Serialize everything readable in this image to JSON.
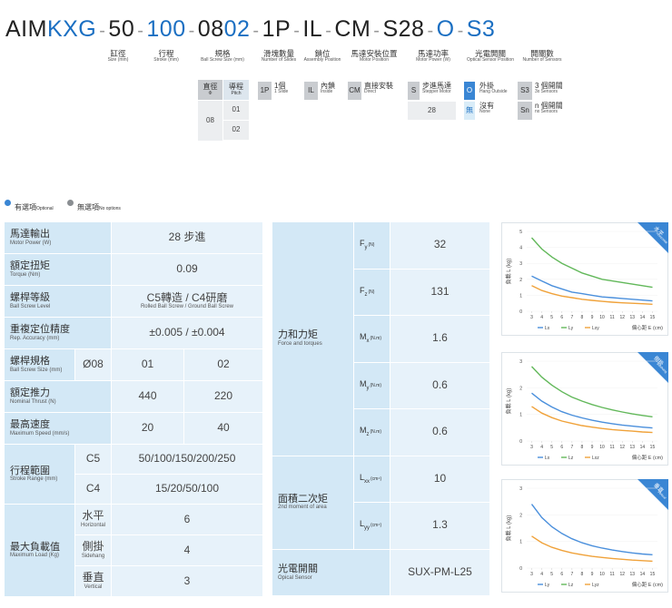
{
  "part_number": {
    "segments": [
      {
        "text": "AIM",
        "color": "#222222"
      },
      {
        "text": "KXG",
        "color": "#1b6fc2"
      },
      {
        "text": "-",
        "color": "#999999"
      },
      {
        "text": "50",
        "color": "#222222"
      },
      {
        "text": "-",
        "color": "#999999"
      },
      {
        "text": "100",
        "color": "#1b6fc2"
      },
      {
        "text": "-",
        "color": "#999999"
      },
      {
        "text": "08",
        "color": "#222222"
      },
      {
        "text": "02",
        "color": "#1b6fc2"
      },
      {
        "text": "-",
        "color": "#999999"
      },
      {
        "text": "1P",
        "color": "#222222"
      },
      {
        "text": "-",
        "color": "#999999"
      },
      {
        "text": "IL",
        "color": "#222222"
      },
      {
        "text": "-",
        "color": "#999999"
      },
      {
        "text": "CM",
        "color": "#222222"
      },
      {
        "text": "-",
        "color": "#999999"
      },
      {
        "text": "S28",
        "color": "#222222"
      },
      {
        "text": "-",
        "color": "#999999"
      },
      {
        "text": "O",
        "color": "#1b6fc2"
      },
      {
        "text": "-",
        "color": "#999999"
      },
      {
        "text": "S3",
        "color": "#1b6fc2"
      }
    ]
  },
  "fields": [
    {
      "zh": "缸徑",
      "en": "Size (mm)"
    },
    {
      "zh": "行程",
      "en": "Stroke (mm)"
    },
    {
      "zh": "規格",
      "en": "Ball Screw Size (mm)"
    },
    {
      "zh": "滑塊數量",
      "en": "Number of Slides"
    },
    {
      "zh": "鎖位",
      "en": "Assembly Position"
    },
    {
      "zh": "馬達安裝位置",
      "en": "Motor Position"
    },
    {
      "zh": "馬達功率",
      "en": "Motor Power (W)"
    },
    {
      "zh": "光電開關",
      "en": "Optical Sensor Position"
    },
    {
      "zh": "開關數",
      "en": "Number of Sensors"
    }
  ],
  "options": {
    "ball_screw": {
      "diameter_header": "直徑",
      "diameter_symbol": "Φ",
      "pitch_header": "導程",
      "pitch_en": "Pitch",
      "diameter": "08",
      "pitches": [
        "01",
        "02"
      ]
    },
    "slides": {
      "code": "1P",
      "zh": "1個",
      "en": "1 Slide"
    },
    "lock": {
      "code": "IL",
      "zh": "內鎖",
      "en": "Inside"
    },
    "motor_position": {
      "code": "CM",
      "zh": "直接安裝",
      "en": "Direct"
    },
    "motor": {
      "code": "S",
      "zh": "步進馬達",
      "en": "Stepper Motor",
      "power": "28"
    },
    "sensor": [
      {
        "code": "O",
        "zh": "外掛",
        "en": "Hang Outside"
      },
      {
        "code": "無",
        "zh": "沒有",
        "en": "None"
      }
    ],
    "sensor_count": [
      {
        "code": "S3",
        "zh": "3 個開關",
        "en": "3x Sensors"
      },
      {
        "code": "Sn",
        "zh": "n 個開關",
        "en": "nx Sensors"
      }
    ]
  },
  "legend": {
    "optional": {
      "zh": "有選項",
      "en": "Optional"
    },
    "none": {
      "zh": "無選項",
      "en": "No options"
    }
  },
  "spec_table": [
    {
      "zh": "馬達輸出",
      "en": "Motor Power (W)",
      "value": "28 步進"
    },
    {
      "zh": "額定扭矩",
      "en": "Torque (Nm)",
      "value": "0.09"
    },
    {
      "zh": "螺桿等級",
      "en": "Ball Screw Level",
      "value": "C5轉造 / C4研磨",
      "value_en": "Rolled Ball Screw / Ground Ball Screw"
    },
    {
      "zh": "重複定位精度",
      "en": "Rep. Accuracy (mm)",
      "value": "±0.005 / ±0.004"
    },
    {
      "zh": "螺桿規格",
      "en": "Ball Screw Size (mm)",
      "sub": "Ø08",
      "values": [
        "01",
        "02"
      ]
    },
    {
      "zh": "額定推力",
      "en": "Nominal Thrust (N)",
      "values": [
        "440",
        "220"
      ]
    },
    {
      "zh": "最高速度",
      "en": "Maximum Speed (mm/s)",
      "values": [
        "20",
        "40"
      ]
    },
    {
      "zh": "行程範圍",
      "en": "Stroke Range (mm)",
      "rows": [
        {
          "sub": "C5",
          "value": "50/100/150/200/250"
        },
        {
          "sub": "C4",
          "value": "15/20/50/100"
        }
      ]
    },
    {
      "zh": "最大負載值",
      "en": "Maximum Load (Kg)",
      "rows": [
        {
          "sub": "水平",
          "sub_en": "Horizontal",
          "value": "6"
        },
        {
          "sub": "側掛",
          "sub_en": "Sidehang",
          "value": "4"
        },
        {
          "sub": "垂直",
          "sub_en": "Vertical",
          "value": "3"
        }
      ]
    }
  ],
  "load_table": [
    {
      "zh": "力和力矩",
      "en": "Force and torques",
      "rows": [
        {
          "symbol": "F",
          "sub": "y",
          "unit": "(N)",
          "value": "32"
        },
        {
          "symbol": "F",
          "sub": "z",
          "unit": "(N)",
          "value": "131"
        },
        {
          "symbol": "M",
          "sub": "x",
          "unit": "(N.m)",
          "value": "1.6"
        },
        {
          "symbol": "M",
          "sub": "y",
          "unit": "(N.m)",
          "value": "0.6"
        },
        {
          "symbol": "M",
          "sub": "z",
          "unit": "(N.m)",
          "value": "0.6"
        }
      ]
    },
    {
      "zh": "面積二次矩",
      "en": "2nd moment of area",
      "rows": [
        {
          "symbol": "L",
          "sub": "xx",
          "unit": "(cm⁴)",
          "value": "10"
        },
        {
          "symbol": "L",
          "sub": "yy",
          "unit": "(cm⁴)",
          "value": "1.3"
        }
      ]
    },
    {
      "zh": "光電開關",
      "en": "Opical Sensor",
      "value": "SUX-PM-L25"
    }
  ],
  "charts": [
    {
      "type": "line",
      "badge": "水平",
      "badge_en": "Horizontal",
      "ylabel": "負載 L (kg)",
      "xlabel": "偏心距 E (cm)",
      "x": [
        3,
        4,
        5,
        6,
        7,
        8,
        9,
        10,
        11,
        12,
        13,
        14,
        15
      ],
      "xlim": [
        2.5,
        15.5
      ],
      "xticks": [
        3,
        4,
        5,
        6,
        7,
        8,
        9,
        10,
        11,
        12,
        13,
        14,
        15
      ],
      "ylim": [
        0,
        5
      ],
      "yticks": [
        0,
        1,
        2,
        3,
        4,
        5
      ],
      "series": [
        {
          "name": "Lx",
          "color": "#4a8fdc",
          "values": [
            2.2,
            1.9,
            1.6,
            1.4,
            1.2,
            1.1,
            1.0,
            0.9,
            0.85,
            0.8,
            0.75,
            0.7,
            0.65
          ]
        },
        {
          "name": "Ly",
          "color": "#62b85a",
          "values": [
            4.6,
            3.9,
            3.4,
            3.0,
            2.7,
            2.4,
            2.2,
            2.0,
            1.9,
            1.8,
            1.7,
            1.6,
            1.5
          ]
        },
        {
          "name": "Lxy",
          "color": "#f0a23a",
          "values": [
            1.6,
            1.3,
            1.1,
            0.95,
            0.85,
            0.75,
            0.68,
            0.62,
            0.57,
            0.53,
            0.5,
            0.47,
            0.44
          ]
        }
      ]
    },
    {
      "type": "line",
      "badge": "側掛",
      "badge_en": "Sidehang",
      "ylabel": "負載 L (kg)",
      "xlabel": "偏心距 E (cm)",
      "x": [
        3,
        4,
        5,
        6,
        7,
        8,
        9,
        10,
        11,
        12,
        13,
        14,
        15
      ],
      "xlim": [
        2.5,
        15.5
      ],
      "xticks": [
        3,
        4,
        5,
        6,
        7,
        8,
        9,
        10,
        11,
        12,
        13,
        14,
        15
      ],
      "ylim": [
        0,
        3
      ],
      "yticks": [
        0,
        1,
        2,
        3
      ],
      "series": [
        {
          "name": "Lx",
          "color": "#4a8fdc",
          "values": [
            1.8,
            1.5,
            1.28,
            1.1,
            0.97,
            0.87,
            0.78,
            0.71,
            0.65,
            0.6,
            0.56,
            0.52,
            0.49
          ]
        },
        {
          "name": "Lz",
          "color": "#62b85a",
          "values": [
            2.8,
            2.4,
            2.1,
            1.85,
            1.65,
            1.5,
            1.37,
            1.26,
            1.17,
            1.09,
            1.02,
            0.96,
            0.91
          ]
        },
        {
          "name": "Lxz",
          "color": "#f0a23a",
          "values": [
            1.3,
            1.05,
            0.88,
            0.75,
            0.66,
            0.58,
            0.52,
            0.47,
            0.43,
            0.4,
            0.37,
            0.34,
            0.32
          ]
        }
      ]
    },
    {
      "type": "line",
      "badge": "垂直",
      "badge_en": "Vertical",
      "ylabel": "負載 L (kg)",
      "xlabel": "偏心距 E (cm)",
      "x": [
        3,
        4,
        5,
        6,
        7,
        8,
        9,
        10,
        11,
        12,
        13,
        14,
        15
      ],
      "xlim": [
        2.5,
        15.5
      ],
      "xticks": [
        3,
        4,
        5,
        6,
        7,
        8,
        9,
        10,
        11,
        12,
        13,
        14,
        15
      ],
      "ylim": [
        0,
        3
      ],
      "yticks": [
        0,
        1,
        2,
        3
      ],
      "series": [
        {
          "name": "Ly",
          "color": "#4a8fdc",
          "values": [
            2.4,
            1.9,
            1.55,
            1.3,
            1.1,
            0.95,
            0.84,
            0.75,
            0.68,
            0.62,
            0.57,
            0.53,
            0.5
          ]
        },
        {
          "name": "Lz",
          "color": "#62b85a",
          "values": [
            null,
            null,
            null,
            null,
            null,
            null,
            null,
            null,
            null,
            null,
            null,
            null,
            null
          ]
        },
        {
          "name": "Lyz",
          "color": "#f0a23a",
          "values": [
            1.2,
            0.95,
            0.78,
            0.66,
            0.57,
            0.5,
            0.44,
            0.4,
            0.36,
            0.33,
            0.3,
            0.28,
            0.26
          ]
        }
      ]
    }
  ]
}
